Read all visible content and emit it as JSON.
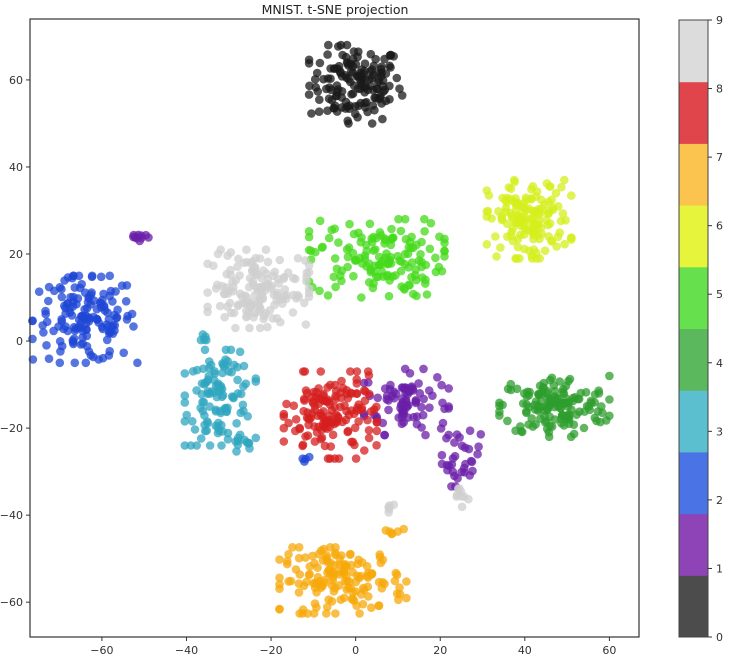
{
  "chart_data": {
    "type": "scatter",
    "title": "MNIST. t-SNE projection",
    "xlabel": "",
    "ylabel": "",
    "xlim": [
      -77,
      67
    ],
    "ylim": [
      -68,
      74
    ],
    "xticks": [
      -60,
      -40,
      -20,
      0,
      20,
      40,
      60
    ],
    "yticks": [
      60,
      40,
      20,
      0,
      -20,
      -40,
      -60
    ],
    "grid": false,
    "colorbar": {
      "ticks": [
        0,
        1,
        2,
        3,
        4,
        5,
        6,
        7,
        8,
        9
      ],
      "colors": [
        "#4c4c4c",
        "#8e44b6",
        "#4a73e6",
        "#5bbfcf",
        "#5cb85c",
        "#66e04c",
        "#e6f53c",
        "#fbc44e",
        "#e0454c",
        "#dcdcdc"
      ]
    },
    "class_colors": [
      "#1a1a1a",
      "#6a1fa8",
      "#1f47d6",
      "#2fa5bf",
      "#2e9e2e",
      "#44d91a",
      "#d4ef1e",
      "#f7a80a",
      "#d61f1f",
      "#cfcfcf"
    ],
    "clusters": [
      {
        "digit": 0,
        "center": [
          0,
          59
        ],
        "spread": [
          5.5,
          4.5
        ],
        "n": 150
      },
      {
        "digit": 1,
        "center": [
          12,
          -14
        ],
        "spread": [
          5,
          3.8
        ],
        "n": 85
      },
      {
        "digit": 1,
        "center": [
          25,
          -27
        ],
        "spread": [
          2.3,
          3.2
        ],
        "n": 32
      },
      {
        "digit": 1,
        "center": [
          -51,
          24
        ],
        "spread": [
          1.5,
          0.8
        ],
        "n": 10
      },
      {
        "digit": 2,
        "center": [
          -64,
          5
        ],
        "spread": [
          6.2,
          5
        ],
        "n": 150
      },
      {
        "digit": 2,
        "center": [
          -12,
          -27.5
        ],
        "spread": [
          0.7,
          0.6
        ],
        "n": 4
      },
      {
        "digit": 3,
        "center": [
          -32,
          -13
        ],
        "spread": [
          4.2,
          5.5
        ],
        "n": 110
      },
      {
        "digit": 3,
        "center": [
          -27,
          -24
        ],
        "spread": [
          1.4,
          1.2
        ],
        "n": 8
      },
      {
        "digit": 3,
        "center": [
          -36,
          0.5
        ],
        "spread": [
          0.8,
          0.6
        ],
        "n": 5
      },
      {
        "digit": 4,
        "center": [
          47,
          -15
        ],
        "spread": [
          6.5,
          3.5
        ],
        "n": 150
      },
      {
        "digit": 5,
        "center": [
          5,
          19
        ],
        "spread": [
          8,
          4.5
        ],
        "n": 150
      },
      {
        "digit": 6,
        "center": [
          41,
          28
        ],
        "spread": [
          5,
          4.5
        ],
        "n": 150
      },
      {
        "digit": 7,
        "center": [
          -3,
          -55
        ],
        "spread": [
          7.5,
          3.8
        ],
        "n": 150
      },
      {
        "digit": 7,
        "center": [
          9,
          -44
        ],
        "spread": [
          1.5,
          0.6
        ],
        "n": 6
      },
      {
        "digit": 8,
        "center": [
          -6,
          -17
        ],
        "spread": [
          5.5,
          5
        ],
        "n": 150
      },
      {
        "digit": 9,
        "center": [
          -23,
          12
        ],
        "spread": [
          6,
          4.5
        ],
        "n": 150
      },
      {
        "digit": 9,
        "center": [
          25,
          -36
        ],
        "spread": [
          1.3,
          1.4
        ],
        "n": 9
      },
      {
        "digit": 9,
        "center": [
          8,
          -38
        ],
        "spread": [
          0.9,
          0.9
        ],
        "n": 5
      }
    ]
  }
}
